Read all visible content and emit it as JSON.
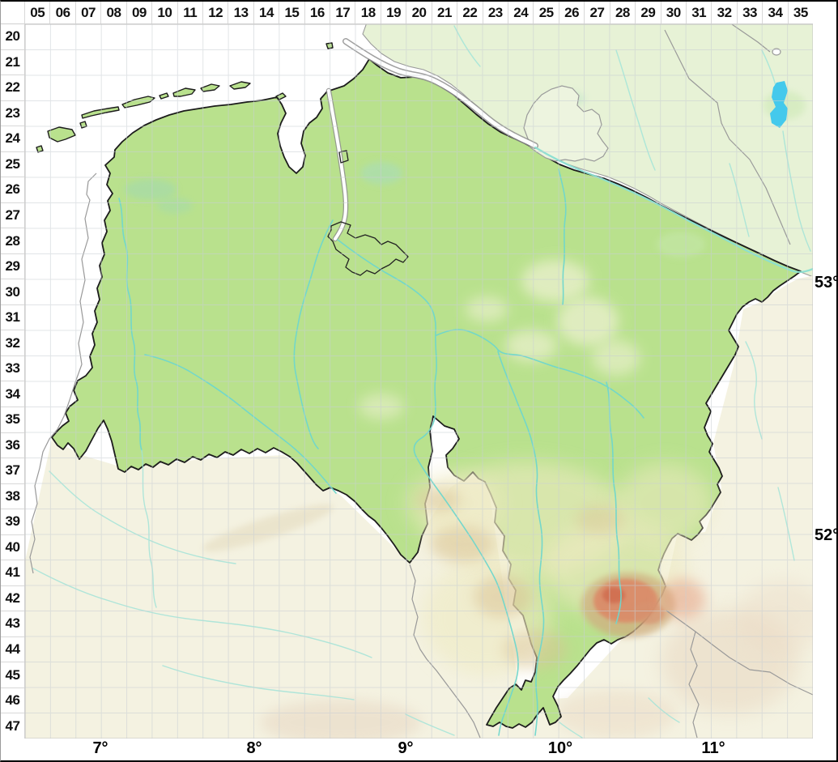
{
  "grid": {
    "column_labels": [
      "05",
      "06",
      "07",
      "08",
      "09",
      "10",
      "11",
      "12",
      "13",
      "14",
      "15",
      "16",
      "17",
      "18",
      "19",
      "20",
      "21",
      "22",
      "23",
      "24",
      "25",
      "26",
      "27",
      "28",
      "29",
      "30",
      "31",
      "32",
      "33",
      "34",
      "35"
    ],
    "row_labels": [
      "20",
      "21",
      "22",
      "23",
      "24",
      "25",
      "26",
      "27",
      "28",
      "29",
      "30",
      "31",
      "32",
      "33",
      "34",
      "35",
      "36",
      "37",
      "38",
      "39",
      "40",
      "41",
      "42",
      "43",
      "44",
      "45",
      "46",
      "47"
    ]
  },
  "coordinates": {
    "longitude_labels": [
      "7°",
      "8°",
      "9°",
      "10°",
      "11°"
    ],
    "latitude_labels": [
      "53°",
      "52°"
    ]
  },
  "map": {
    "sea_color": "#ffffff",
    "region_fill": "#b9e18d",
    "north_neighbor_fill": "#e7f2d6",
    "south_neighbor_fill": "#f4f2e1",
    "state_border_color": "#1c1c1c",
    "neighbor_border_color": "#999999",
    "river_color": "#6fd7cd",
    "lake_color": "#44c9ec",
    "highland_color": "#db8a68",
    "grid_line_color": "#c9cfd4"
  }
}
